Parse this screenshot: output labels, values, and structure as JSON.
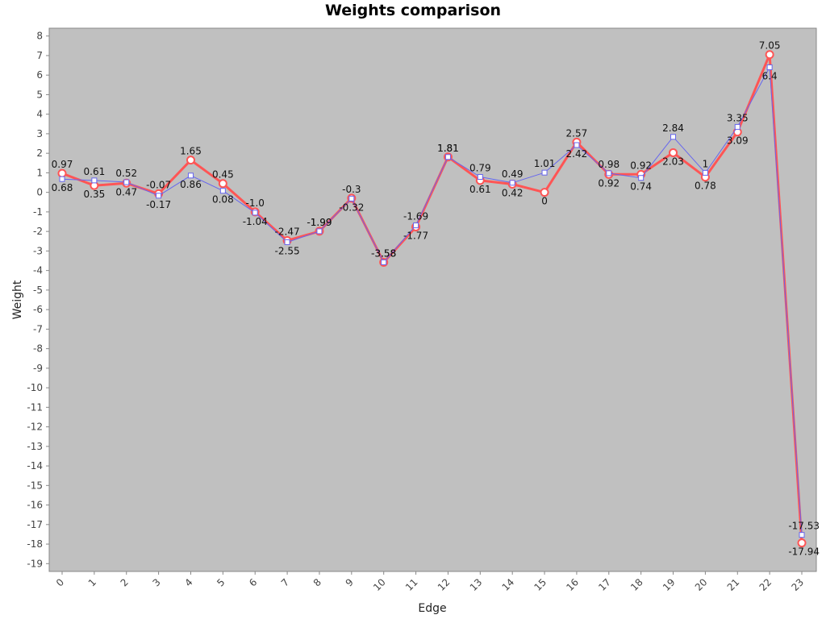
{
  "chart_data": {
    "type": "line",
    "title": "Weights comparison",
    "xlabel": "Edge",
    "ylabel": "Weight",
    "x": [
      0,
      1,
      2,
      3,
      4,
      5,
      6,
      7,
      8,
      9,
      10,
      11,
      12,
      13,
      14,
      15,
      16,
      17,
      18,
      19,
      20,
      21,
      22,
      23
    ],
    "ylim": [
      -19.4,
      8.4
    ],
    "yticks": [
      8,
      7,
      6,
      5,
      4,
      3,
      2,
      1,
      0,
      -1,
      -2,
      -3,
      -4,
      -5,
      -6,
      -7,
      -8,
      -9,
      -10,
      -11,
      -12,
      -13,
      -14,
      -15,
      -16,
      -17,
      -18,
      -19
    ],
    "grid": false,
    "legend": "none",
    "background": "#c0c0c0",
    "series": [
      {
        "color": "#ff5555",
        "marker": "circle",
        "values": [
          0.97,
          0.35,
          0.47,
          -0.07,
          1.65,
          0.45,
          -1.0,
          -2.47,
          -1.99,
          -0.3,
          -3.58,
          -1.77,
          1.81,
          0.61,
          0.42,
          0.0,
          2.57,
          0.92,
          0.92,
          2.03,
          0.78,
          3.09,
          7.05,
          -17.94
        ],
        "labels": [
          "0.97",
          "0.35",
          "0.47",
          "-0.07",
          "1.65",
          "0.45",
          "-1.0",
          "-2.47",
          "-1.99",
          "-0.3",
          "-3.58",
          "-1.77",
          "1.81",
          "0.61",
          "0.42",
          "0",
          "2.57",
          "0.92",
          "0.92",
          "2.03",
          "0.78",
          "3.09",
          "7.05",
          "-17.94"
        ]
      },
      {
        "color": "#6666ee",
        "marker": "square",
        "values": [
          0.68,
          0.61,
          0.52,
          -0.17,
          0.86,
          0.08,
          -1.04,
          -2.55,
          -1.99,
          -0.32,
          -3.58,
          -1.69,
          1.81,
          0.79,
          0.49,
          1.01,
          2.42,
          0.98,
          0.74,
          2.84,
          1.0,
          3.35,
          6.4,
          -17.53
        ],
        "labels": [
          "0.68",
          "0.61",
          "0.52",
          "-0.17",
          "0.86",
          "0.08",
          "-1.04",
          "-2.55",
          "-1.99",
          "-0.32",
          "-3.58",
          "-1.69",
          "1.81",
          "0.79",
          "0.49",
          "1.01",
          "2.42",
          "0.98",
          "0.74",
          "2.84",
          "1",
          "3.35",
          "6.4",
          "-17.53"
        ]
      }
    ]
  }
}
